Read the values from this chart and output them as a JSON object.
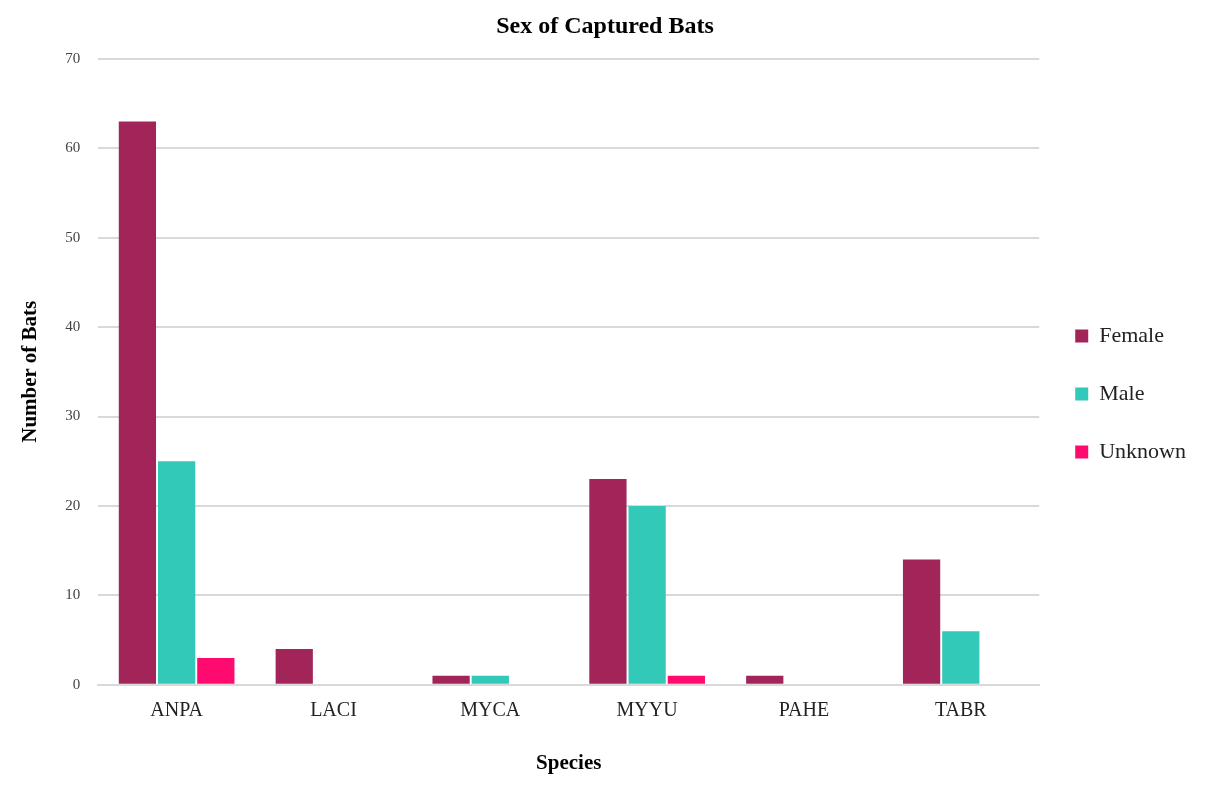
{
  "chart_data": {
    "type": "bar",
    "title": "Sex of Captured Bats",
    "xlabel": "Species",
    "ylabel": "Number of Bats",
    "categories": [
      "ANPA",
      "LACI",
      "MYCA",
      "MYYU",
      "PAHE",
      "TABR"
    ],
    "series": [
      {
        "name": "Female",
        "color": "#a2255a",
        "values": [
          63,
          4,
          1,
          23,
          1,
          14
        ]
      },
      {
        "name": "Male",
        "color": "#33c9b9",
        "values": [
          25,
          0,
          1,
          20,
          0,
          6
        ]
      },
      {
        "name": "Unknown",
        "color": "#ff0a6e",
        "values": [
          3,
          0,
          0,
          1,
          0,
          0
        ]
      }
    ],
    "ylim": [
      0,
      70
    ],
    "yticks": [
      0,
      10,
      20,
      30,
      40,
      50,
      60,
      70
    ],
    "grid": "y",
    "legend": "right"
  }
}
